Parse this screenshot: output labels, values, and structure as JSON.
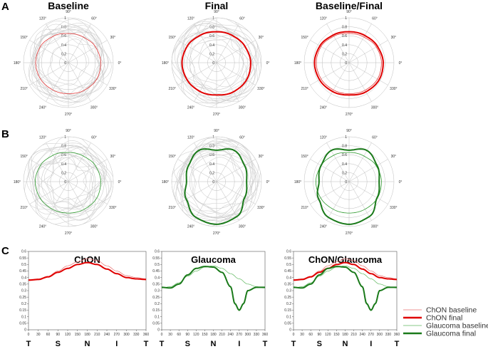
{
  "panel_labels": [
    "A",
    "B",
    "C"
  ],
  "chart_data": [
    {
      "type": "polar",
      "panel": "A",
      "title": "Baseline",
      "angle_labels": [
        "0°",
        "30°",
        "60°",
        "90°",
        "120°",
        "150°",
        "180°",
        "210°",
        "240°",
        "270°",
        "300°",
        "330°"
      ],
      "r_labels": [
        "0",
        "0.2",
        "0.4",
        "0.6",
        "0.8",
        "1"
      ],
      "rlim": [
        0,
        1
      ],
      "series": [
        {
          "name": "individual baselines",
          "color": "#cfcfcf",
          "count": 14,
          "r_range": [
            0.45,
            0.85
          ]
        },
        {
          "name": "mean baseline",
          "color": "#e23b3b",
          "width": 0.8,
          "radius_deg": [
            [
              0,
              0.72
            ],
            [
              30,
              0.7
            ],
            [
              60,
              0.66
            ],
            [
              90,
              0.65
            ],
            [
              120,
              0.68
            ],
            [
              150,
              0.72
            ],
            [
              180,
              0.73
            ],
            [
              210,
              0.72
            ],
            [
              240,
              0.7
            ],
            [
              270,
              0.69
            ],
            [
              300,
              0.71
            ],
            [
              330,
              0.73
            ]
          ]
        }
      ]
    },
    {
      "type": "polar",
      "panel": "A",
      "title": "Final",
      "angle_labels": [
        "0°",
        "30°",
        "60°",
        "90°",
        "120°",
        "150°",
        "180°",
        "210°",
        "240°",
        "270°",
        "300°",
        "330°"
      ],
      "r_labels": [
        "0",
        "0.2",
        "0.4",
        "0.6",
        "0.8",
        "1"
      ],
      "rlim": [
        0,
        1
      ],
      "series": [
        {
          "name": "individual finals",
          "color": "#cfcfcf",
          "count": 14,
          "r_range": [
            0.5,
            0.95
          ]
        },
        {
          "name": "mean final",
          "color": "#e00000",
          "width": 2,
          "radius_deg": [
            [
              0,
              0.76
            ],
            [
              30,
              0.73
            ],
            [
              60,
              0.7
            ],
            [
              90,
              0.69
            ],
            [
              120,
              0.71
            ],
            [
              150,
              0.75
            ],
            [
              180,
              0.77
            ],
            [
              210,
              0.76
            ],
            [
              240,
              0.74
            ],
            [
              270,
              0.72
            ],
            [
              300,
              0.75
            ],
            [
              330,
              0.77
            ]
          ]
        }
      ]
    },
    {
      "type": "polar",
      "panel": "A",
      "title": "Baseline/Final",
      "angle_labels": [
        "0°",
        "30°",
        "60°",
        "90°",
        "120°",
        "150°",
        "180°",
        "210°",
        "240°",
        "270°",
        "300°",
        "330°"
      ],
      "r_labels": [
        "0",
        "0.2",
        "0.4",
        "0.6",
        "0.8",
        "1"
      ],
      "rlim": [
        0,
        1
      ],
      "series": [
        {
          "name": "mean baseline",
          "color": "#e23b3b",
          "width": 0.8,
          "radius_deg": [
            [
              0,
              0.72
            ],
            [
              30,
              0.7
            ],
            [
              60,
              0.66
            ],
            [
              90,
              0.65
            ],
            [
              120,
              0.68
            ],
            [
              150,
              0.72
            ],
            [
              180,
              0.73
            ],
            [
              210,
              0.72
            ],
            [
              240,
              0.7
            ],
            [
              270,
              0.69
            ],
            [
              300,
              0.71
            ],
            [
              330,
              0.73
            ]
          ]
        },
        {
          "name": "mean final",
          "color": "#e00000",
          "width": 2,
          "radius_deg": [
            [
              0,
              0.76
            ],
            [
              30,
              0.73
            ],
            [
              60,
              0.7
            ],
            [
              90,
              0.69
            ],
            [
              120,
              0.71
            ],
            [
              150,
              0.75
            ],
            [
              180,
              0.77
            ],
            [
              210,
              0.76
            ],
            [
              240,
              0.74
            ],
            [
              270,
              0.72
            ],
            [
              300,
              0.75
            ],
            [
              330,
              0.77
            ]
          ]
        }
      ]
    },
    {
      "type": "polar",
      "panel": "B",
      "title": "",
      "angle_labels": [
        "0°",
        "30°",
        "60°",
        "90°",
        "120°",
        "150°",
        "180°",
        "210°",
        "240°",
        "270°",
        "300°",
        "330°"
      ],
      "r_labels": [
        "0",
        "0.2",
        "0.4",
        "0.6",
        "0.8",
        "1"
      ],
      "rlim": [
        0,
        1
      ],
      "series": [
        {
          "name": "individual baselines",
          "color": "#cfcfcf",
          "count": 14,
          "r_range": [
            0.5,
            0.9
          ]
        },
        {
          "name": "mean baseline",
          "color": "#2f9a2f",
          "width": 0.8,
          "radius_deg": [
            [
              0,
              0.72
            ],
            [
              30,
              0.7
            ],
            [
              60,
              0.66
            ],
            [
              90,
              0.65
            ],
            [
              120,
              0.68
            ],
            [
              150,
              0.72
            ],
            [
              180,
              0.74
            ],
            [
              210,
              0.73
            ],
            [
              240,
              0.71
            ],
            [
              270,
              0.7
            ],
            [
              300,
              0.71
            ],
            [
              330,
              0.73
            ]
          ]
        }
      ]
    },
    {
      "type": "polar",
      "panel": "B",
      "title": "",
      "angle_labels": [
        "0°",
        "30°",
        "60°",
        "90°",
        "120°",
        "150°",
        "180°",
        "210°",
        "240°",
        "270°",
        "300°",
        "330°"
      ],
      "r_labels": [
        "0",
        "0.2",
        "0.4",
        "0.6",
        "0.8",
        "1"
      ],
      "rlim": [
        0,
        1
      ],
      "series": [
        {
          "name": "individual finals",
          "color": "#cfcfcf",
          "count": 14,
          "r_range": [
            0.5,
            1.0
          ]
        },
        {
          "name": "mean final",
          "color": "#1a7a1a",
          "width": 2,
          "radius_deg": [
            [
              0,
              0.67
            ],
            [
              30,
              0.72
            ],
            [
              60,
              0.8
            ],
            [
              90,
              0.7
            ],
            [
              120,
              0.8
            ],
            [
              150,
              0.72
            ],
            [
              180,
              0.67
            ],
            [
              210,
              0.78
            ],
            [
              240,
              0.92
            ],
            [
              270,
              0.95
            ],
            [
              300,
              0.9
            ],
            [
              330,
              0.72
            ]
          ]
        }
      ]
    },
    {
      "type": "polar",
      "panel": "B",
      "title": "",
      "angle_labels": [
        "0°",
        "30°",
        "60°",
        "90°",
        "120°",
        "150°",
        "180°",
        "210°",
        "240°",
        "270°",
        "300°",
        "330°"
      ],
      "r_labels": [
        "0",
        "0.2",
        "0.4",
        "0.6",
        "0.8",
        "1"
      ],
      "rlim": [
        0,
        1
      ],
      "series": [
        {
          "name": "mean baseline",
          "color": "#2f9a2f",
          "width": 0.8,
          "radius_deg": [
            [
              0,
              0.72
            ],
            [
              30,
              0.7
            ],
            [
              60,
              0.66
            ],
            [
              90,
              0.65
            ],
            [
              120,
              0.68
            ],
            [
              150,
              0.72
            ],
            [
              180,
              0.74
            ],
            [
              210,
              0.73
            ],
            [
              240,
              0.71
            ],
            [
              270,
              0.7
            ],
            [
              300,
              0.71
            ],
            [
              330,
              0.73
            ]
          ]
        },
        {
          "name": "mean final",
          "color": "#1a7a1a",
          "width": 2,
          "radius_deg": [
            [
              0,
              0.67
            ],
            [
              30,
              0.72
            ],
            [
              60,
              0.8
            ],
            [
              90,
              0.7
            ],
            [
              120,
              0.8
            ],
            [
              150,
              0.72
            ],
            [
              180,
              0.67
            ],
            [
              210,
              0.78
            ],
            [
              240,
              0.92
            ],
            [
              270,
              0.95
            ],
            [
              300,
              0.9
            ],
            [
              330,
              0.72
            ]
          ]
        }
      ]
    },
    {
      "type": "line",
      "panel": "C",
      "title": "ChON",
      "x_ticks": [
        "0",
        "30",
        "60",
        "90",
        "120",
        "150",
        "180",
        "210",
        "240",
        "270",
        "300",
        "330",
        "360"
      ],
      "y_ticks": [
        "0",
        "0.05",
        "0.1",
        "0.15",
        "0.2",
        "0.25",
        "0.3",
        "0.35",
        "0.4",
        "0.45",
        "0.5",
        "0.55",
        "0.6"
      ],
      "xlim": [
        0,
        360
      ],
      "ylim": [
        0,
        0.6
      ],
      "tsnit": [
        "T",
        "S",
        "N",
        "I",
        "T"
      ],
      "series": [
        {
          "name": "ChON baseline",
          "color": "#e87070",
          "width": 0.7,
          "x": [
            0,
            30,
            60,
            90,
            120,
            150,
            180,
            210,
            240,
            270,
            300,
            330,
            360
          ],
          "y": [
            0.385,
            0.39,
            0.41,
            0.45,
            0.49,
            0.52,
            0.545,
            0.53,
            0.49,
            0.45,
            0.415,
            0.4,
            0.39
          ]
        },
        {
          "name": "ChON final",
          "color": "#e00000",
          "width": 2,
          "x": [
            0,
            30,
            60,
            90,
            120,
            150,
            180,
            210,
            240,
            270,
            300,
            330,
            360
          ],
          "y": [
            0.38,
            0.385,
            0.405,
            0.44,
            0.47,
            0.5,
            0.515,
            0.5,
            0.465,
            0.43,
            0.4,
            0.39,
            0.385
          ]
        }
      ]
    },
    {
      "type": "line",
      "panel": "C",
      "title": "Glaucoma",
      "x_ticks": [
        "0",
        "30",
        "60",
        "90",
        "120",
        "150",
        "180",
        "210",
        "240",
        "270",
        "300",
        "330",
        "360"
      ],
      "y_ticks": [
        "0",
        "0.05",
        "0.1",
        "0.15",
        "0.2",
        "0.25",
        "0.3",
        "0.35",
        "0.4",
        "0.45",
        "0.5",
        "0.55",
        "0.6"
      ],
      "xlim": [
        0,
        360
      ],
      "ylim": [
        0,
        0.6
      ],
      "tsnit": [
        "T",
        "S",
        "N",
        "I",
        "T"
      ],
      "series": [
        {
          "name": "Glaucoma baseline",
          "color": "#5fb85f",
          "width": 0.7,
          "x": [
            0,
            30,
            60,
            90,
            120,
            150,
            180,
            210,
            240,
            270,
            300,
            330,
            360
          ],
          "y": [
            0.32,
            0.33,
            0.36,
            0.41,
            0.45,
            0.48,
            0.49,
            0.47,
            0.43,
            0.39,
            0.35,
            0.33,
            0.32
          ]
        },
        {
          "name": "Glaucoma final",
          "color": "#1a7a1a",
          "width": 2,
          "x": [
            0,
            30,
            60,
            90,
            120,
            150,
            180,
            210,
            240,
            255,
            270,
            285,
            300,
            330,
            360
          ],
          "y": [
            0.325,
            0.32,
            0.35,
            0.42,
            0.47,
            0.485,
            0.48,
            0.44,
            0.33,
            0.2,
            0.15,
            0.2,
            0.3,
            0.325,
            0.325
          ]
        }
      ]
    },
    {
      "type": "line",
      "panel": "C",
      "title": "ChON/Glaucoma",
      "x_ticks": [
        "0",
        "30",
        "60",
        "90",
        "120",
        "150",
        "180",
        "210",
        "240",
        "270",
        "300",
        "330",
        "360"
      ],
      "y_ticks": [
        "0",
        "0.05",
        "0.1",
        "0.15",
        "0.2",
        "0.25",
        "0.3",
        "0.35",
        "0.4",
        "0.45",
        "0.5",
        "0.55",
        "0.6"
      ],
      "xlim": [
        0,
        360
      ],
      "ylim": [
        0,
        0.6
      ],
      "tsnit": [
        "T",
        "S",
        "N",
        "I",
        "T"
      ],
      "series": [
        {
          "name": "ChON baseline",
          "color": "#e87070",
          "width": 0.7,
          "x": [
            0,
            30,
            60,
            90,
            120,
            150,
            180,
            210,
            240,
            270,
            300,
            330,
            360
          ],
          "y": [
            0.385,
            0.39,
            0.41,
            0.45,
            0.49,
            0.52,
            0.545,
            0.53,
            0.49,
            0.45,
            0.415,
            0.4,
            0.39
          ]
        },
        {
          "name": "ChON final",
          "color": "#e00000",
          "width": 2,
          "x": [
            0,
            30,
            60,
            90,
            120,
            150,
            180,
            210,
            240,
            270,
            300,
            330,
            360
          ],
          "y": [
            0.38,
            0.385,
            0.405,
            0.44,
            0.47,
            0.5,
            0.515,
            0.5,
            0.465,
            0.43,
            0.4,
            0.39,
            0.385
          ]
        },
        {
          "name": "Glaucoma baseline",
          "color": "#5fb85f",
          "width": 0.7,
          "x": [
            0,
            30,
            60,
            90,
            120,
            150,
            180,
            210,
            240,
            270,
            300,
            330,
            360
          ],
          "y": [
            0.32,
            0.33,
            0.36,
            0.41,
            0.45,
            0.48,
            0.49,
            0.47,
            0.43,
            0.39,
            0.35,
            0.33,
            0.32
          ]
        },
        {
          "name": "Glaucoma final",
          "color": "#1a7a1a",
          "width": 2,
          "x": [
            0,
            30,
            60,
            90,
            120,
            150,
            180,
            210,
            240,
            255,
            270,
            285,
            300,
            330,
            360
          ],
          "y": [
            0.325,
            0.32,
            0.35,
            0.42,
            0.47,
            0.485,
            0.48,
            0.44,
            0.33,
            0.2,
            0.15,
            0.2,
            0.3,
            0.325,
            0.325
          ]
        }
      ]
    }
  ],
  "legend": {
    "placement": "right",
    "entries": [
      {
        "label": "ChON baseline",
        "color": "#e87070",
        "width": 0.8
      },
      {
        "label": "ChON final",
        "color": "#e00000",
        "width": 2.5
      },
      {
        "label": "Glaucoma baseline",
        "color": "#5fb85f",
        "width": 0.8
      },
      {
        "label": "Glaucoma final",
        "color": "#1a7a1a",
        "width": 2.5
      }
    ]
  }
}
